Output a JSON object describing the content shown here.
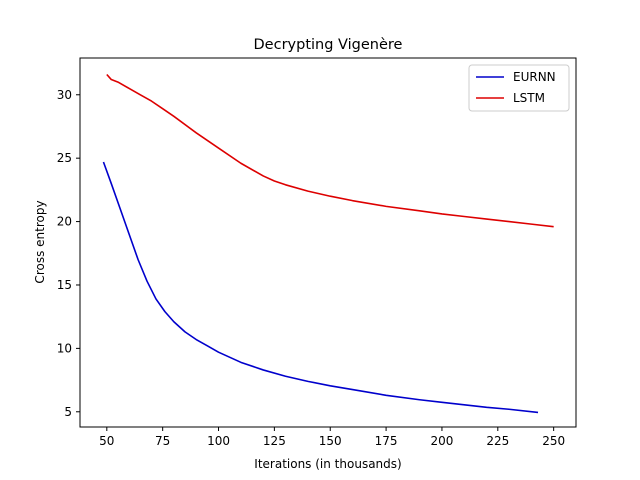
{
  "chart_data": {
    "type": "line",
    "title": "Decrypting Vigenère",
    "xlabel": "Iterations (in thousands)",
    "ylabel": "Cross entropy",
    "xlim": [
      38,
      260
    ],
    "ylim": [
      3.8,
      32.9
    ],
    "xticks": [
      50,
      75,
      100,
      125,
      150,
      175,
      200,
      225,
      250
    ],
    "yticks": [
      5,
      10,
      15,
      20,
      25,
      30
    ],
    "grid": false,
    "legend_position": "top-right",
    "series": [
      {
        "name": "EURNN",
        "color": "#0000cc",
        "x": [
          48.5,
          52,
          56,
          60,
          64,
          68,
          72,
          76,
          80,
          85,
          90,
          95,
          100,
          110,
          120,
          130,
          140,
          150,
          160,
          175,
          190,
          200,
          210,
          220,
          230,
          243
        ],
        "y": [
          24.7,
          23.0,
          21.0,
          19.0,
          17.0,
          15.3,
          13.9,
          12.9,
          12.1,
          11.3,
          10.7,
          10.2,
          9.7,
          8.9,
          8.3,
          7.8,
          7.4,
          7.05,
          6.75,
          6.3,
          5.95,
          5.75,
          5.55,
          5.35,
          5.2,
          4.95
        ]
      },
      {
        "name": "LSTM",
        "color": "#dd0000",
        "x": [
          50,
          52,
          55,
          60,
          65,
          70,
          75,
          80,
          90,
          100,
          110,
          120,
          125,
          130,
          140,
          150,
          160,
          175,
          190,
          200,
          210,
          220,
          230,
          240,
          250
        ],
        "y": [
          31.6,
          31.2,
          31.0,
          30.5,
          30.0,
          29.5,
          28.9,
          28.3,
          27.0,
          25.8,
          24.6,
          23.6,
          23.2,
          22.9,
          22.4,
          22.0,
          21.65,
          21.2,
          20.85,
          20.6,
          20.4,
          20.2,
          20.0,
          19.8,
          19.6
        ]
      }
    ]
  }
}
